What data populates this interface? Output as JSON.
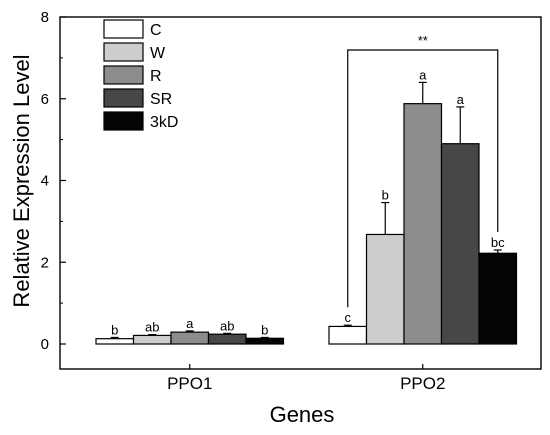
{
  "chart_data": {
    "type": "bar",
    "title": "",
    "xlabel": "Genes",
    "ylabel": "Relative Expression Level",
    "ylim": [
      0,
      8
    ],
    "yticks": [
      0,
      2,
      4,
      6,
      8
    ],
    "categories": [
      "PPO1",
      "PPO2"
    ],
    "series": [
      {
        "name": "C",
        "color": "#ffffff",
        "values": [
          0.13,
          0.43
        ],
        "errors": [
          0.03,
          0.03
        ],
        "letters": [
          "b",
          "c"
        ]
      },
      {
        "name": "W",
        "color": "#cdcdcd",
        "values": [
          0.21,
          2.68
        ],
        "errors": [
          0.02,
          0.78
        ],
        "letters": [
          "ab",
          "b"
        ]
      },
      {
        "name": "R",
        "color": "#8c8c8c",
        "values": [
          0.29,
          5.88
        ],
        "errors": [
          0.03,
          0.52
        ],
        "letters": [
          "a",
          "a"
        ]
      },
      {
        "name": "SR",
        "color": "#474747",
        "values": [
          0.24,
          4.9
        ],
        "errors": [
          0.02,
          0.9
        ],
        "letters": [
          "ab",
          "a"
        ]
      },
      {
        "name": "3kD",
        "color": "#050505",
        "values": [
          0.14,
          2.22
        ],
        "errors": [
          0.02,
          0.08
        ],
        "letters": [
          "b",
          "bc"
        ]
      }
    ],
    "significance": {
      "label": "**",
      "category": "PPO2",
      "from_series": "C",
      "to_series": "3kD"
    },
    "legend_position": "top-left",
    "grid": false
  }
}
